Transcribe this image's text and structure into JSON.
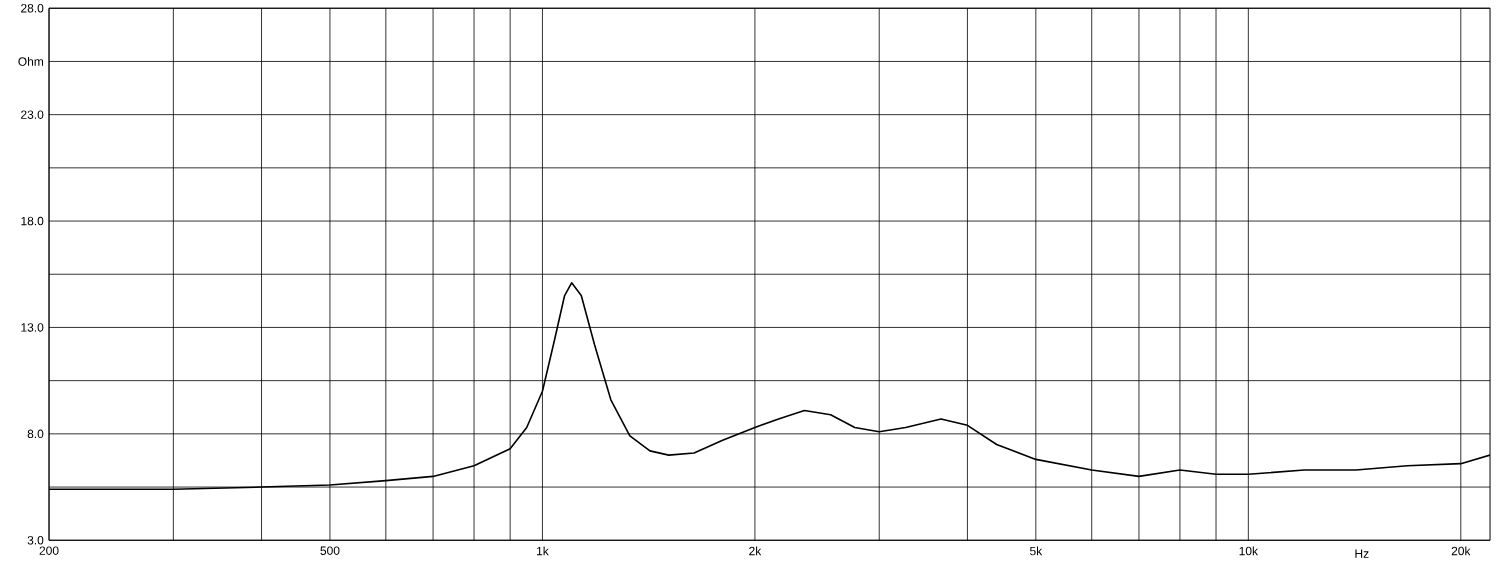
{
  "chart_data": {
    "type": "line",
    "xlabel": "Hz",
    "log": "x",
    "grid": true,
    "xlim": [
      200,
      22000
    ],
    "ylim": [
      3,
      28
    ],
    "xticks": [
      200,
      {
        "value": 300,
        "label": null
      },
      {
        "value": 400,
        "label": null
      },
      500,
      {
        "value": 600,
        "label": null
      },
      {
        "value": 700,
        "label": null
      },
      {
        "value": 800,
        "label": null
      },
      {
        "value": 900,
        "label": null
      },
      {
        "value": 1000,
        "label": "1k"
      },
      {
        "value": 2000,
        "label": "2k"
      },
      {
        "value": 3000,
        "label": null
      },
      {
        "value": 4000,
        "label": null
      },
      {
        "value": 5000,
        "label": "5k"
      },
      {
        "value": 6000,
        "label": null
      },
      {
        "value": 7000,
        "label": null
      },
      {
        "value": 8000,
        "label": null
      },
      {
        "value": 9000,
        "label": null
      },
      {
        "value": 10000,
        "label": "10k"
      },
      {
        "value": 20000,
        "label": "20k"
      }
    ],
    "yticks": [
      {
        "value": 3,
        "label": "3.0"
      },
      {
        "value": 5.5,
        "label": null
      },
      {
        "value": 8,
        "label": "8.0"
      },
      {
        "value": 10.5,
        "label": null
      },
      {
        "value": 13,
        "label": "13.0"
      },
      {
        "value": 15.5,
        "label": null
      },
      {
        "value": 18,
        "label": "18.0"
      },
      {
        "value": 20.5,
        "label": null
      },
      {
        "value": 23,
        "label": "23.0"
      },
      {
        "value": 25.5,
        "label": "Ohm"
      },
      {
        "value": 28,
        "label": "28.0"
      }
    ],
    "x": [
      200,
      300,
      400,
      500,
      600,
      700,
      800,
      900,
      950,
      1000,
      1040,
      1075,
      1100,
      1135,
      1185,
      1250,
      1330,
      1420,
      1510,
      1640,
      1800,
      2000,
      2160,
      2350,
      2560,
      2770,
      3000,
      3270,
      3670,
      4000,
      4400,
      5000,
      6000,
      7000,
      8000,
      9000,
      10000,
      12000,
      14200,
      16800,
      20000,
      22000
    ],
    "values": [
      5.4,
      5.4,
      5.5,
      5.6,
      5.8,
      6.0,
      6.5,
      7.3,
      8.3,
      10.0,
      12.4,
      14.5,
      15.1,
      14.5,
      12.2,
      9.6,
      7.9,
      7.2,
      7.0,
      7.1,
      7.7,
      8.3,
      8.7,
      9.1,
      8.9,
      8.3,
      8.1,
      8.3,
      8.7,
      8.4,
      7.5,
      6.8,
      6.3,
      6.0,
      6.3,
      6.1,
      6.1,
      6.3,
      6.3,
      6.5,
      6.6,
      7.0
    ],
    "color": "#000000"
  }
}
